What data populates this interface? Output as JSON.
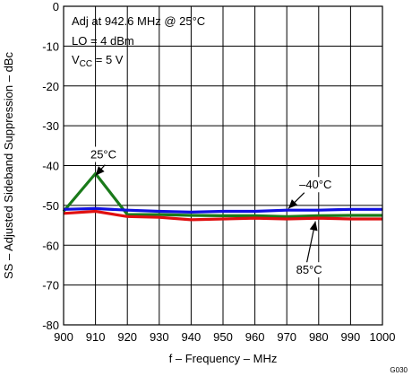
{
  "chart_data": {
    "type": "line",
    "xlabel": "f – Frequency – MHz",
    "ylabel": "SS – Adjusted Sideband Suppression – dBc",
    "xlim": [
      900,
      1000
    ],
    "ylim": [
      -80,
      0
    ],
    "x_ticks": [
      900,
      910,
      920,
      930,
      940,
      950,
      960,
      970,
      980,
      990,
      1000
    ],
    "y_ticks": [
      0,
      -10,
      -20,
      -30,
      -40,
      -50,
      -60,
      -70,
      -80
    ],
    "grid": true,
    "notes": [
      "Adj at 942.6 MHz @ 25°C",
      "LO = 4 dBm"
    ],
    "vcc": {
      "prefix": "V",
      "subscript": "CC",
      "value": " =  5 V"
    },
    "series": [
      {
        "label": "25°C",
        "color": "#1a7a1a",
        "x": [
          900,
          910,
          920,
          930,
          940,
          950,
          960,
          970,
          980,
          990,
          1000
        ],
        "y": [
          -51.5,
          -42,
          -52.3,
          -52.3,
          -52.5,
          -52.6,
          -52.6,
          -52.8,
          -52.6,
          -52.5,
          -52.5
        ]
      },
      {
        "label": "–40°C",
        "color": "#1010e0",
        "x": [
          900,
          910,
          920,
          930,
          940,
          950,
          960,
          970,
          980,
          990,
          1000
        ],
        "y": [
          -51,
          -50.8,
          -51.2,
          -51.5,
          -51.7,
          -51.5,
          -51.5,
          -51.2,
          -51.2,
          -51,
          -51
        ]
      },
      {
        "label": "85°C",
        "color": "#e01010",
        "x": [
          900,
          910,
          920,
          930,
          940,
          950,
          960,
          970,
          980,
          990,
          1000
        ],
        "y": [
          -52,
          -51.5,
          -52.8,
          -53,
          -53.6,
          -53.4,
          -53.2,
          -53.4,
          -53.2,
          -53.4,
          -53.4
        ]
      }
    ],
    "corner_code": "G030"
  }
}
